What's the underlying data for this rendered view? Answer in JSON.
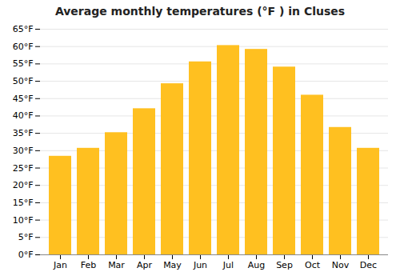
{
  "chart_data": {
    "type": "bar",
    "title": "Average monthly temperatures (°F ) in Cluses",
    "categories": [
      "Jan",
      "Feb",
      "Mar",
      "Apr",
      "May",
      "Jun",
      "Jul",
      "Aug",
      "Sep",
      "Oct",
      "Nov",
      "Dec"
    ],
    "values": [
      28.4,
      30.7,
      35.2,
      42.1,
      49.3,
      55.6,
      60.3,
      59.2,
      54.1,
      46.0,
      36.7,
      30.7
    ],
    "color": "#FFC020",
    "ylim": [
      0,
      65
    ],
    "yticks": [
      {
        "value": 0,
        "label": "0°F"
      },
      {
        "value": 5,
        "label": "5°F"
      },
      {
        "value": 10,
        "label": "10°F"
      },
      {
        "value": 15,
        "label": "15°F"
      },
      {
        "value": 20,
        "label": "20°F"
      },
      {
        "value": 25,
        "label": "25°F"
      },
      {
        "value": 30,
        "label": "30°F"
      },
      {
        "value": 35,
        "label": "35°F"
      },
      {
        "value": 40,
        "label": "40°F"
      },
      {
        "value": 45,
        "label": "45°F"
      },
      {
        "value": 50,
        "label": "50°F"
      },
      {
        "value": 55,
        "label": "55°F"
      },
      {
        "value": 60,
        "label": "60°F"
      },
      {
        "value": 65,
        "label": "65°F"
      }
    ],
    "grid": true
  }
}
